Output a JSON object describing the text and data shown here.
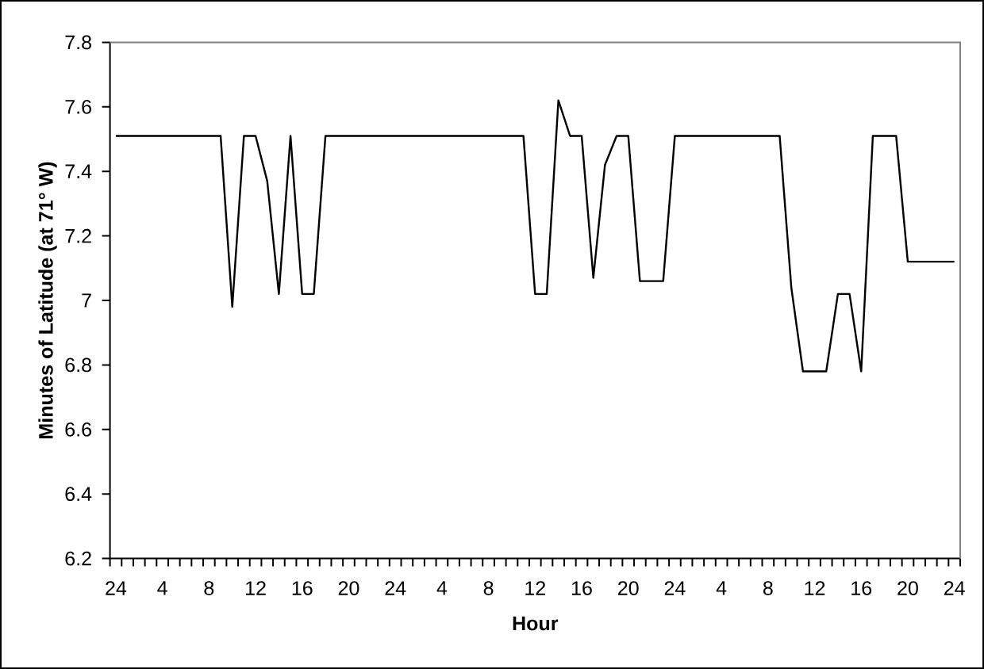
{
  "chart_data": {
    "type": "line",
    "xlabel": "Hour",
    "ylabel": "Minutes of Latitude (at 71° W)",
    "categories": [
      "24",
      null,
      null,
      null,
      "4",
      null,
      null,
      null,
      "8",
      null,
      null,
      null,
      "12",
      null,
      null,
      null,
      "16",
      null,
      null,
      null,
      "20",
      null,
      null,
      null,
      "24",
      null,
      null,
      null,
      "4",
      null,
      null,
      null,
      "8",
      null,
      null,
      null,
      "12",
      null,
      null,
      null,
      "16",
      null,
      null,
      null,
      "20",
      null,
      null,
      null,
      "24",
      null,
      null,
      null,
      "4",
      null,
      null,
      null,
      "8",
      null,
      null,
      null,
      "12",
      null,
      null,
      null,
      "16",
      null,
      null,
      null,
      "20",
      null,
      null,
      null,
      "24"
    ],
    "series": [
      {
        "color": "#000000",
        "values": [
          7.51,
          7.51,
          7.51,
          7.51,
          7.51,
          7.51,
          7.51,
          7.51,
          7.51,
          7.51,
          6.98,
          7.51,
          7.51,
          7.37,
          7.02,
          7.51,
          7.02,
          7.02,
          7.51,
          7.51,
          7.51,
          7.51,
          7.51,
          7.51,
          7.51,
          7.51,
          7.51,
          7.51,
          7.51,
          7.51,
          7.51,
          7.51,
          7.51,
          7.51,
          7.51,
          7.51,
          7.02,
          7.02,
          7.62,
          7.51,
          7.51,
          7.07,
          7.42,
          7.51,
          7.51,
          7.06,
          7.06,
          7.06,
          7.51,
          7.51,
          7.51,
          7.51,
          7.51,
          7.51,
          7.51,
          7.51,
          7.51,
          7.51,
          7.04,
          6.78,
          6.78,
          6.78,
          7.02,
          7.02,
          6.78,
          7.51,
          7.51,
          7.51,
          7.12,
          7.12,
          7.12,
          7.12,
          7.12
        ]
      }
    ],
    "ylim": [
      6.2,
      7.8
    ],
    "yticks": [
      6.2,
      6.4,
      6.6,
      6.8,
      7,
      7.2,
      7.4,
      7.6,
      7.8
    ],
    "marker": "none",
    "line_style": "solid"
  }
}
